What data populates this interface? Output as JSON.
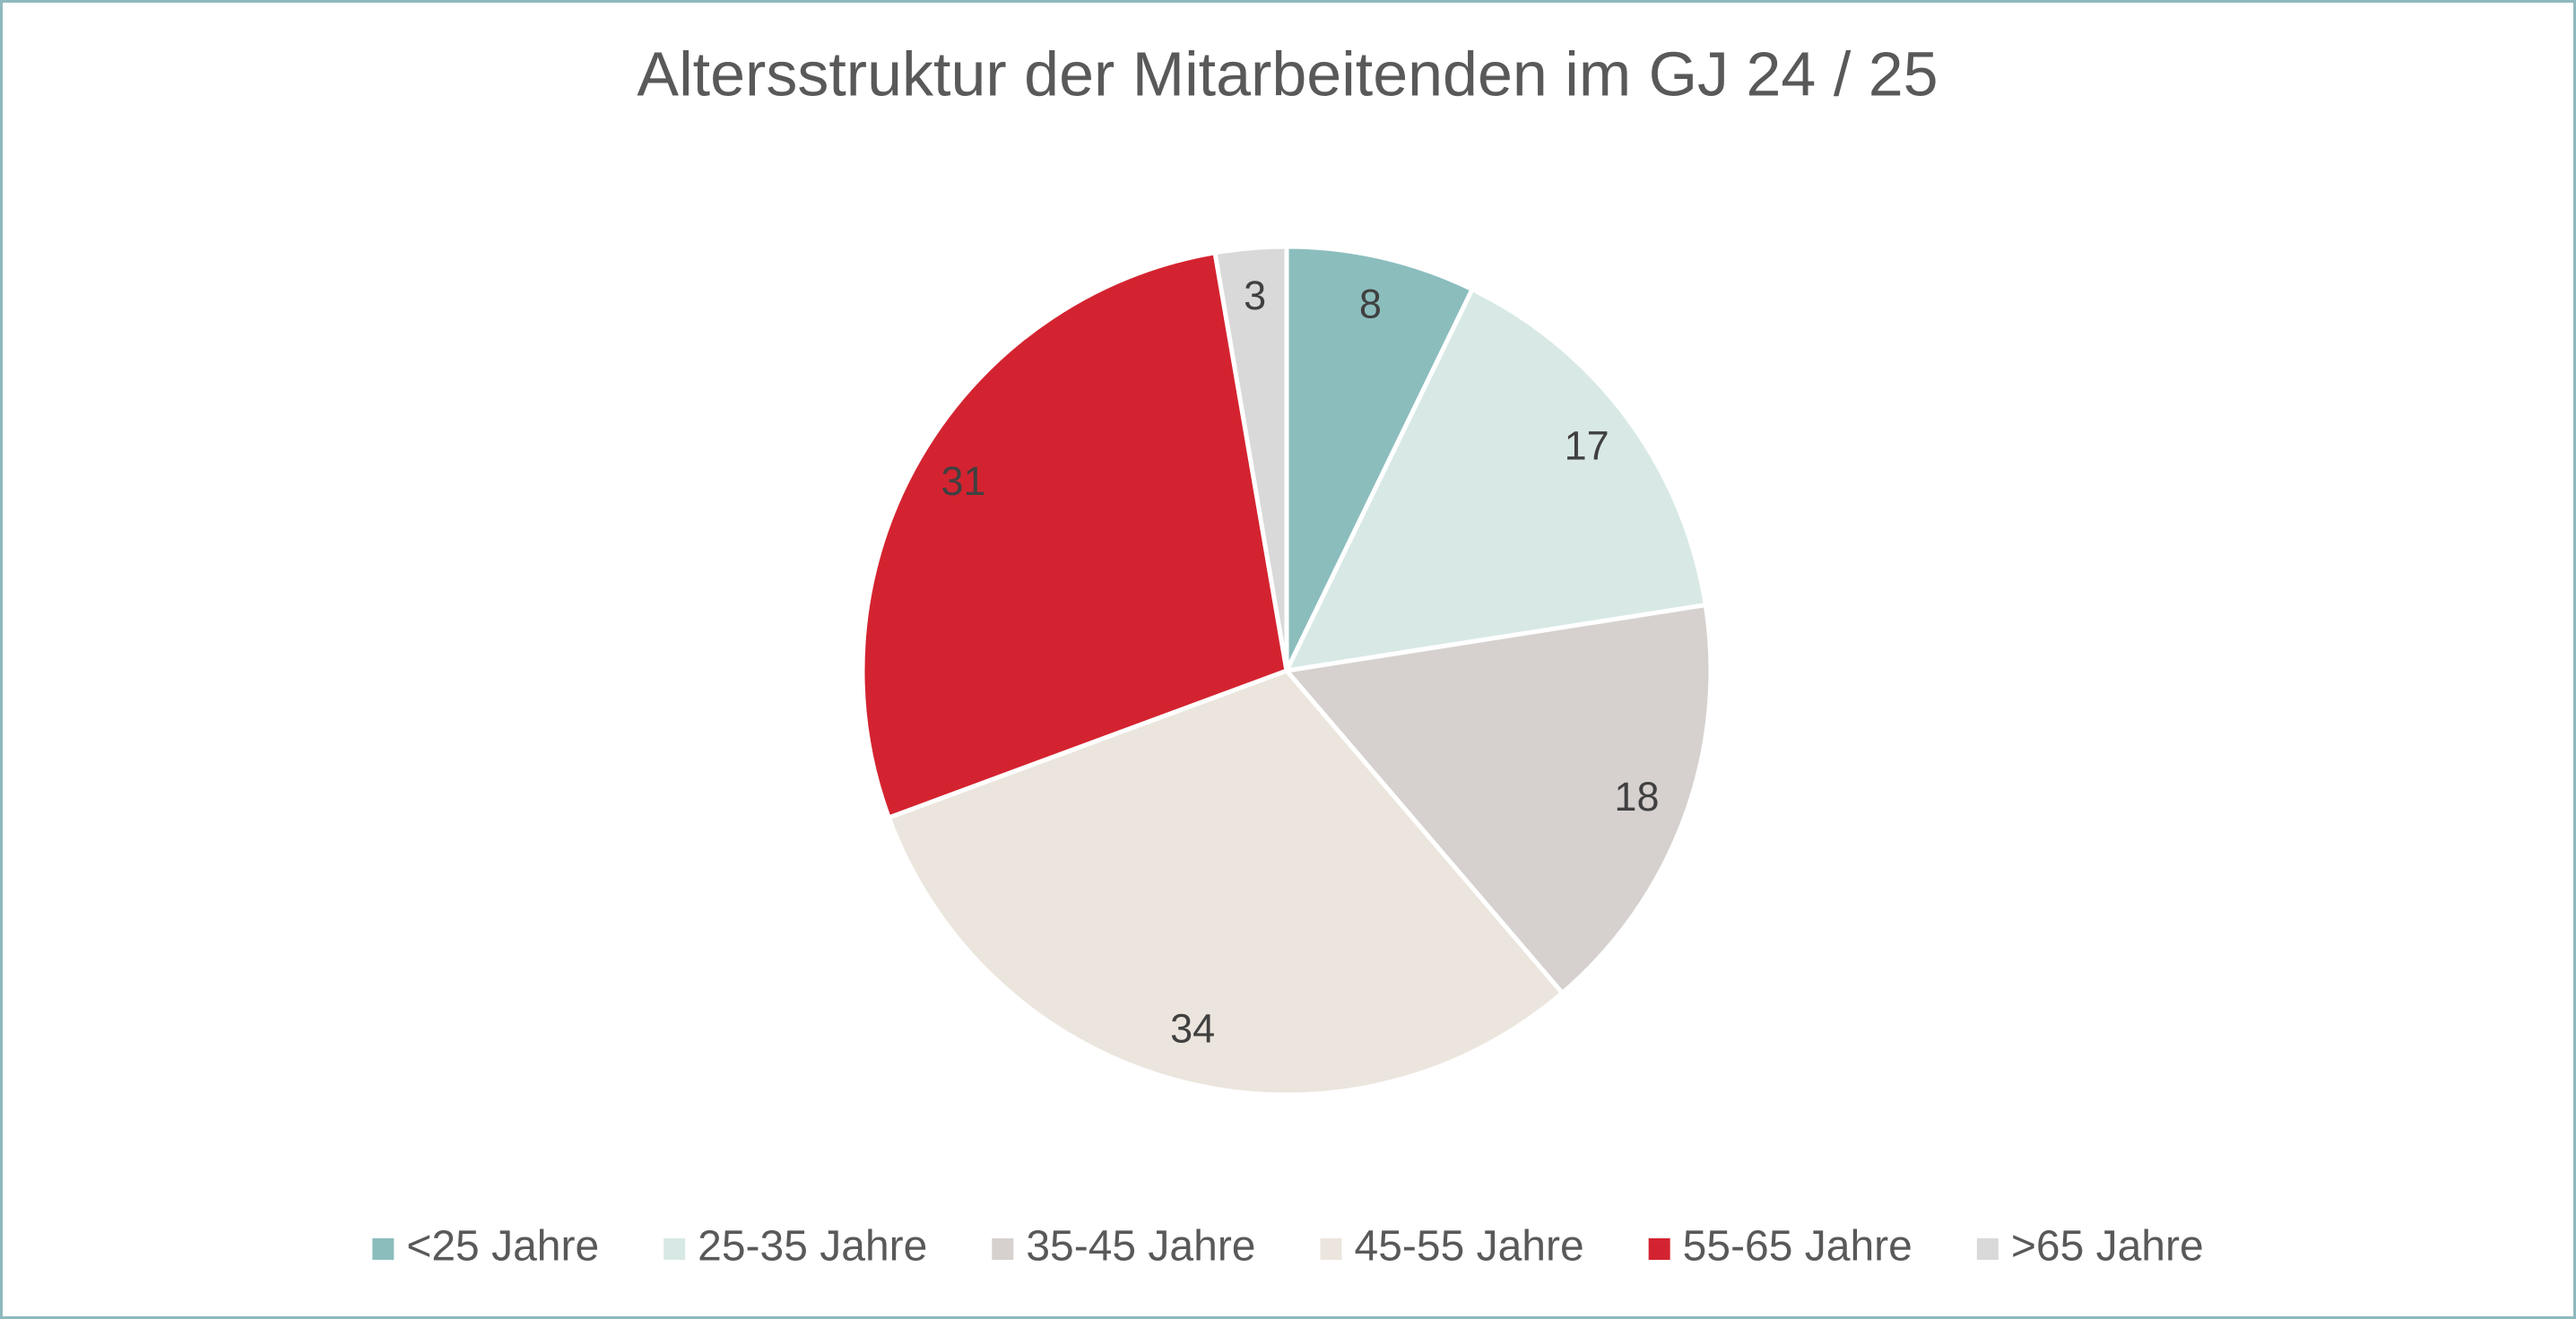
{
  "chart_data": {
    "type": "pie",
    "title": "Altersstruktur der Mitarbeitenden im GJ 24 / 25",
    "categories": [
      "<25 Jahre",
      "25-35 Jahre",
      "35-45 Jahre",
      "45-55 Jahre",
      "55-65 Jahre",
      ">65 Jahre"
    ],
    "values": [
      8,
      17,
      18,
      34,
      31,
      3
    ],
    "colors": [
      "#8cbdbd",
      "#d8e9e5",
      "#d6d1cf",
      "#ebe5dd",
      "#d42330",
      "#d9d9d9"
    ],
    "legend": "bottom"
  }
}
